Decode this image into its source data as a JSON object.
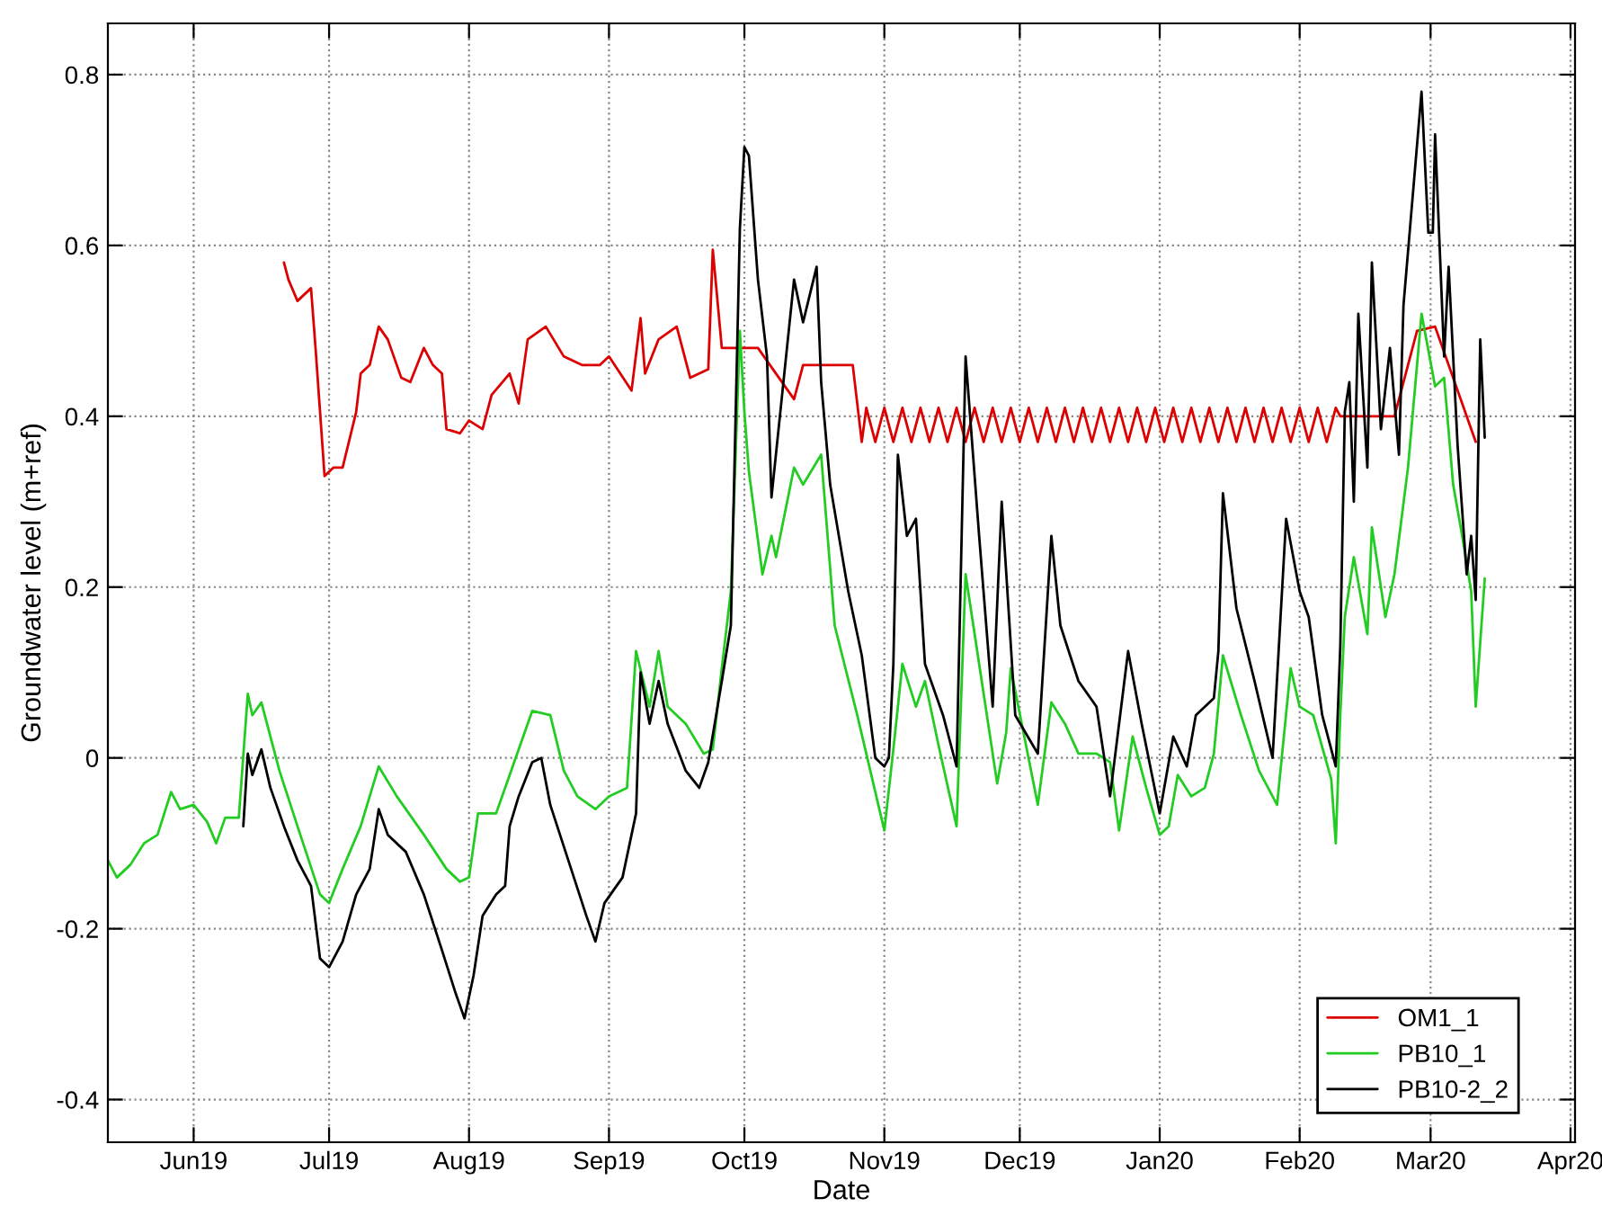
{
  "chart_data": {
    "type": "line",
    "xlabel": "Date",
    "ylabel": "Groundwater level (m+ref)",
    "xlim": [
      "2019-05-13",
      "2020-04-02"
    ],
    "ylim": [
      -0.45,
      0.86
    ],
    "xticks": [
      {
        "value": "2019-06-01",
        "label": "Jun19"
      },
      {
        "value": "2019-07-01",
        "label": "Jul19"
      },
      {
        "value": "2019-08-01",
        "label": "Aug19"
      },
      {
        "value": "2019-09-01",
        "label": "Sep19"
      },
      {
        "value": "2019-10-01",
        "label": "Oct19"
      },
      {
        "value": "2019-11-01",
        "label": "Nov19"
      },
      {
        "value": "2019-12-01",
        "label": "Dec19"
      },
      {
        "value": "2020-01-01",
        "label": "Jan20"
      },
      {
        "value": "2020-02-01",
        "label": "Feb20"
      },
      {
        "value": "2020-03-01",
        "label": "Mar20"
      },
      {
        "value": "2020-04-01",
        "label": "Apr20"
      }
    ],
    "yticks": [
      -0.4,
      -0.2,
      0,
      0.2,
      0.4,
      0.6,
      0.8
    ],
    "grid": true,
    "legend": "bottom right",
    "line_style": "solid",
    "series": [
      {
        "name": "OM1_1",
        "color": "#dd0000",
        "x": [
          "2019-06-21",
          "2019-06-22",
          "2019-06-24",
          "2019-06-27",
          "2019-06-28",
          "2019-06-30",
          "2019-07-02",
          "2019-07-04",
          "2019-07-07",
          "2019-07-08",
          "2019-07-10",
          "2019-07-12",
          "2019-07-14",
          "2019-07-17",
          "2019-07-19",
          "2019-07-22",
          "2019-07-24",
          "2019-07-26",
          "2019-07-27",
          "2019-07-30",
          "2019-08-01",
          "2019-08-04",
          "2019-08-06",
          "2019-08-10",
          "2019-08-12",
          "2019-08-14",
          "2019-08-18",
          "2019-08-22",
          "2019-08-26",
          "2019-08-30",
          "2019-09-01",
          "2019-09-06",
          "2019-09-08",
          "2019-09-09",
          "2019-09-12",
          "2019-09-16",
          "2019-09-19",
          "2019-09-23",
          "2019-09-24",
          "2019-09-26",
          "2019-09-29",
          "2019-10-04",
          "2019-10-08",
          "2019-10-12",
          "2019-10-14",
          "2019-10-25",
          "2019-10-27",
          "2019-10-28",
          "2019-10-30",
          "2019-11-01",
          "2019-11-03",
          "2019-11-05",
          "2019-11-07",
          "2019-11-09",
          "2019-11-11",
          "2019-11-13",
          "2019-11-15",
          "2019-11-17",
          "2019-11-19",
          "2019-11-21",
          "2019-11-23",
          "2019-11-25",
          "2019-11-27",
          "2019-11-29",
          "2019-12-01",
          "2019-12-03",
          "2019-12-05",
          "2019-12-07",
          "2019-12-09",
          "2019-12-11",
          "2019-12-13",
          "2019-12-15",
          "2019-12-17",
          "2019-12-19",
          "2019-12-21",
          "2019-12-23",
          "2019-12-25",
          "2019-12-27",
          "2019-12-29",
          "2019-12-31",
          "2020-01-02",
          "2020-01-04",
          "2020-01-06",
          "2020-01-08",
          "2020-01-10",
          "2020-01-12",
          "2020-01-14",
          "2020-01-16",
          "2020-01-18",
          "2020-01-20",
          "2020-01-22",
          "2020-01-24",
          "2020-01-26",
          "2020-01-28",
          "2020-01-30",
          "2020-02-01",
          "2020-02-03",
          "2020-02-05",
          "2020-02-07",
          "2020-02-09",
          "2020-02-10",
          "2020-02-22",
          "2020-02-27",
          "2020-03-02",
          "2020-03-11"
        ],
        "values": [
          0.58,
          0.56,
          0.535,
          0.55,
          0.48,
          0.33,
          0.34,
          0.34,
          0.405,
          0.45,
          0.46,
          0.505,
          0.49,
          0.445,
          0.44,
          0.48,
          0.46,
          0.45,
          0.385,
          0.38,
          0.395,
          0.385,
          0.425,
          0.45,
          0.415,
          0.49,
          0.505,
          0.47,
          0.46,
          0.46,
          0.47,
          0.43,
          0.515,
          0.45,
          0.49,
          0.505,
          0.445,
          0.455,
          0.595,
          0.48,
          0.48,
          0.48,
          0.45,
          0.42,
          0.46,
          0.46,
          0.37,
          0.41,
          0.37,
          0.41,
          0.37,
          0.41,
          0.37,
          0.41,
          0.37,
          0.41,
          0.37,
          0.41,
          0.37,
          0.41,
          0.37,
          0.41,
          0.37,
          0.41,
          0.37,
          0.41,
          0.37,
          0.41,
          0.37,
          0.41,
          0.37,
          0.41,
          0.37,
          0.41,
          0.37,
          0.41,
          0.37,
          0.41,
          0.37,
          0.41,
          0.37,
          0.41,
          0.37,
          0.41,
          0.37,
          0.41,
          0.37,
          0.41,
          0.37,
          0.41,
          0.37,
          0.41,
          0.37,
          0.41,
          0.37,
          0.41,
          0.37,
          0.41,
          0.37,
          0.41,
          0.4,
          0.4,
          0.5,
          0.505,
          0.37
        ]
      },
      {
        "name": "PB10_1",
        "color": "#22cc22",
        "x": [
          "2019-05-13",
          "2019-05-15",
          "2019-05-18",
          "2019-05-21",
          "2019-05-24",
          "2019-05-27",
          "2019-05-29",
          "2019-06-01",
          "2019-06-04",
          "2019-06-06",
          "2019-06-08",
          "2019-06-11",
          "2019-06-13",
          "2019-06-14",
          "2019-06-16",
          "2019-06-20",
          "2019-06-24",
          "2019-06-29",
          "2019-07-01",
          "2019-07-04",
          "2019-07-08",
          "2019-07-12",
          "2019-07-16",
          "2019-07-22",
          "2019-07-27",
          "2019-07-30",
          "2019-08-01",
          "2019-08-03",
          "2019-08-07",
          "2019-08-10",
          "2019-08-15",
          "2019-08-19",
          "2019-08-22",
          "2019-08-25",
          "2019-08-29",
          "2019-09-01",
          "2019-09-05",
          "2019-09-07",
          "2019-09-10",
          "2019-09-12",
          "2019-09-14",
          "2019-09-18",
          "2019-09-22",
          "2019-09-24",
          "2019-09-26",
          "2019-09-28",
          "2019-09-30",
          "2019-10-01",
          "2019-10-02",
          "2019-10-05",
          "2019-10-07",
          "2019-10-08",
          "2019-10-12",
          "2019-10-14",
          "2019-10-18",
          "2019-10-21",
          "2019-10-26",
          "2019-11-01",
          "2019-11-03",
          "2019-11-05",
          "2019-11-08",
          "2019-11-10",
          "2019-11-13",
          "2019-11-17",
          "2019-11-19",
          "2019-11-22",
          "2019-11-26",
          "2019-11-28",
          "2019-11-29",
          "2019-12-02",
          "2019-12-05",
          "2019-12-08",
          "2019-12-11",
          "2019-12-14",
          "2019-12-18",
          "2019-12-21",
          "2019-12-23",
          "2019-12-26",
          "2019-12-29",
          "2020-01-01",
          "2020-01-03",
          "2020-01-05",
          "2020-01-08",
          "2020-01-11",
          "2020-01-13",
          "2020-01-15",
          "2020-01-19",
          "2020-01-23",
          "2020-01-27",
          "2020-01-30",
          "2020-02-01",
          "2020-02-04",
          "2020-02-08",
          "2020-02-09",
          "2020-02-10",
          "2020-02-11",
          "2020-02-13",
          "2020-02-16",
          "2020-02-17",
          "2020-02-20",
          "2020-02-22",
          "2020-02-25",
          "2020-02-28",
          "2020-03-02",
          "2020-03-04",
          "2020-03-06",
          "2020-03-08",
          "2020-03-10",
          "2020-03-11",
          "2020-03-13"
        ],
        "values": [
          -0.12,
          -0.14,
          -0.125,
          -0.1,
          -0.09,
          -0.04,
          -0.06,
          -0.055,
          -0.075,
          -0.1,
          -0.07,
          -0.07,
          0.075,
          0.05,
          0.065,
          -0.015,
          -0.08,
          -0.16,
          -0.17,
          -0.13,
          -0.08,
          -0.01,
          -0.045,
          -0.09,
          -0.13,
          -0.145,
          -0.14,
          -0.065,
          -0.065,
          -0.02,
          0.055,
          0.05,
          -0.015,
          -0.045,
          -0.06,
          -0.045,
          -0.035,
          0.125,
          0.06,
          0.125,
          0.06,
          0.04,
          0.005,
          0.01,
          0.105,
          0.195,
          0.5,
          0.405,
          0.335,
          0.215,
          0.26,
          0.235,
          0.34,
          0.32,
          0.355,
          0.155,
          0.05,
          -0.085,
          0.01,
          0.11,
          0.06,
          0.09,
          0.015,
          -0.08,
          0.215,
          0.11,
          -0.03,
          0.03,
          0.105,
          0.025,
          -0.055,
          0.065,
          0.04,
          0.005,
          0.005,
          -0.005,
          -0.085,
          0.025,
          -0.035,
          -0.09,
          -0.08,
          -0.02,
          -0.045,
          -0.035,
          0.005,
          0.12,
          0.05,
          -0.015,
          -0.055,
          0.105,
          0.06,
          0.05,
          -0.025,
          -0.1,
          0.05,
          0.165,
          0.235,
          0.145,
          0.27,
          0.165,
          0.215,
          0.34,
          0.52,
          0.435,
          0.445,
          0.32,
          0.26,
          0.195,
          0.06,
          0.21
        ]
      },
      {
        "name": "PB10-2_2",
        "color": "#000000",
        "x": [
          "2019-06-12",
          "2019-06-13",
          "2019-06-14",
          "2019-06-16",
          "2019-06-18",
          "2019-06-21",
          "2019-06-24",
          "2019-06-27",
          "2019-06-29",
          "2019-07-01",
          "2019-07-04",
          "2019-07-07",
          "2019-07-10",
          "2019-07-12",
          "2019-07-14",
          "2019-07-18",
          "2019-07-22",
          "2019-07-26",
          "2019-07-29",
          "2019-07-31",
          "2019-08-02",
          "2019-08-04",
          "2019-08-07",
          "2019-08-09",
          "2019-08-10",
          "2019-08-12",
          "2019-08-15",
          "2019-08-17",
          "2019-08-19",
          "2019-08-23",
          "2019-08-27",
          "2019-08-29",
          "2019-08-31",
          "2019-09-04",
          "2019-09-07",
          "2019-09-08",
          "2019-09-10",
          "2019-09-12",
          "2019-09-14",
          "2019-09-18",
          "2019-09-21",
          "2019-09-23",
          "2019-09-26",
          "2019-09-28",
          "2019-09-30",
          "2019-10-01",
          "2019-10-02",
          "2019-10-04",
          "2019-10-06",
          "2019-10-07",
          "2019-10-12",
          "2019-10-14",
          "2019-10-17",
          "2019-10-18",
          "2019-10-20",
          "2019-10-24",
          "2019-10-27",
          "2019-10-30",
          "2019-11-01",
          "2019-11-02",
          "2019-11-03",
          "2019-11-04",
          "2019-11-06",
          "2019-11-08",
          "2019-11-10",
          "2019-11-14",
          "2019-11-17",
          "2019-11-19",
          "2019-11-22",
          "2019-11-25",
          "2019-11-27",
          "2019-11-30",
          "2019-12-05",
          "2019-12-08",
          "2019-12-10",
          "2019-12-14",
          "2019-12-18",
          "2019-12-21",
          "2019-12-25",
          "2019-12-28",
          "2020-01-01",
          "2020-01-04",
          "2020-01-07",
          "2020-01-09",
          "2020-01-13",
          "2020-01-14",
          "2020-01-15",
          "2020-01-18",
          "2020-01-22",
          "2020-01-26",
          "2020-01-29",
          "2020-02-01",
          "2020-02-03",
          "2020-02-06",
          "2020-02-09",
          "2020-02-10",
          "2020-02-11",
          "2020-02-12",
          "2020-02-13",
          "2020-02-14",
          "2020-02-16",
          "2020-02-17",
          "2020-02-19",
          "2020-02-21",
          "2020-02-23",
          "2020-02-24",
          "2020-02-26",
          "2020-02-28",
          "2020-02-29T12:00",
          "2020-03-01",
          "2020-03-01T12:00",
          "2020-03-02",
          "2020-03-04",
          "2020-03-05",
          "2020-03-07",
          "2020-03-09",
          "2020-03-10",
          "2020-03-11",
          "2020-03-12",
          "2020-03-13"
        ],
        "values": [
          -0.08,
          0.005,
          -0.02,
          0.01,
          -0.035,
          -0.08,
          -0.12,
          -0.15,
          -0.235,
          -0.245,
          -0.215,
          -0.16,
          -0.13,
          -0.06,
          -0.09,
          -0.11,
          -0.16,
          -0.225,
          -0.275,
          -0.305,
          -0.255,
          -0.185,
          -0.16,
          -0.15,
          -0.08,
          -0.045,
          -0.005,
          0.0,
          -0.055,
          -0.12,
          -0.185,
          -0.215,
          -0.17,
          -0.14,
          -0.065,
          0.1,
          0.04,
          0.09,
          0.04,
          -0.015,
          -0.035,
          -0.005,
          0.09,
          0.155,
          0.62,
          0.715,
          0.705,
          0.56,
          0.47,
          0.305,
          0.56,
          0.51,
          0.575,
          0.44,
          0.32,
          0.195,
          0.12,
          0.0,
          -0.01,
          0.0,
          0.11,
          0.355,
          0.26,
          0.28,
          0.11,
          0.05,
          -0.01,
          0.47,
          0.26,
          0.06,
          0.3,
          0.05,
          0.005,
          0.26,
          0.155,
          0.09,
          0.06,
          -0.045,
          0.125,
          0.04,
          -0.065,
          0.025,
          -0.01,
          0.05,
          0.07,
          0.125,
          0.31,
          0.175,
          0.09,
          0.0,
          0.28,
          0.195,
          0.165,
          0.05,
          -0.01,
          0.13,
          0.405,
          0.44,
          0.3,
          0.52,
          0.34,
          0.58,
          0.385,
          0.48,
          0.355,
          0.53,
          0.655,
          0.78,
          0.615,
          0.615,
          0.615,
          0.73,
          0.47,
          0.575,
          0.365,
          0.215,
          0.26,
          0.185,
          0.49,
          0.375
        ]
      }
    ]
  }
}
